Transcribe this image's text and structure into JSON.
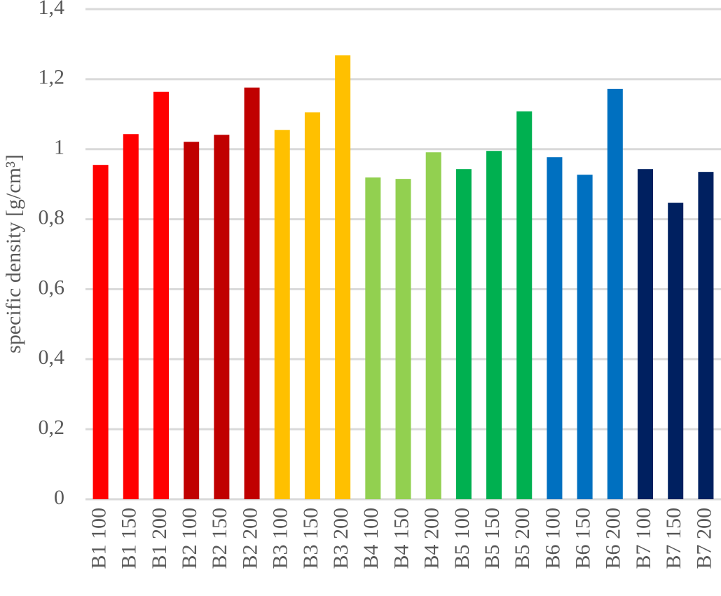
{
  "chart_data": {
    "type": "bar",
    "y_label": "specific density [g/cm³]",
    "categories": [
      "B1 100",
      "B1 150",
      "B1 200",
      "B2 100",
      "B2 150",
      "B2 200",
      "B3 100",
      "B3 150",
      "B3 200",
      "B4 100",
      "B4 150",
      "B4 200",
      "B5 100",
      "B5 150",
      "B5 200",
      "B6 100",
      "B6 150",
      "B6 200",
      "B7 100",
      "B7 150",
      "B7 200"
    ],
    "values": [
      0.955,
      1.043,
      1.164,
      1.021,
      1.041,
      1.176,
      1.055,
      1.105,
      1.268,
      0.919,
      0.915,
      0.991,
      0.943,
      0.995,
      1.108,
      0.977,
      0.927,
      1.172,
      0.943,
      0.847,
      0.935
    ],
    "colors": [
      "#ff0000",
      "#ff0000",
      "#ff0000",
      "#c00000",
      "#c00000",
      "#c00000",
      "#ffc000",
      "#ffc000",
      "#ffc000",
      "#92d050",
      "#92d050",
      "#92d050",
      "#00b050",
      "#00b050",
      "#00b050",
      "#0070c0",
      "#0070c0",
      "#0070c0",
      "#002060",
      "#002060",
      "#002060"
    ],
    "ylim": [
      0,
      1.4
    ],
    "yticks": [
      0,
      {
        "value": 0.2,
        "label": "0,2"
      },
      {
        "value": 0.4,
        "label": "0,4"
      },
      {
        "value": 0.6,
        "label": "0,6"
      },
      {
        "value": 0.8,
        "label": "0,8"
      },
      1,
      {
        "value": 1.2,
        "label": "1,2"
      },
      {
        "value": 1.4,
        "label": "1,4"
      }
    ],
    "grid": true
  }
}
